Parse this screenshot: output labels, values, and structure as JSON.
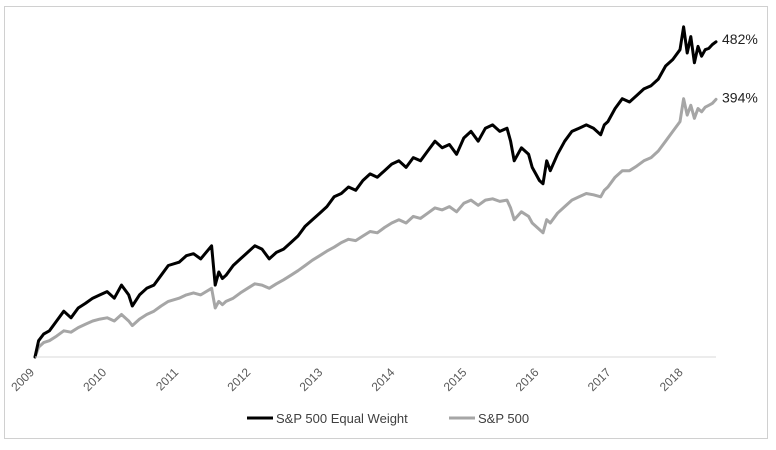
{
  "chart_data": {
    "type": "line",
    "title": "",
    "xlabel": "",
    "ylabel": "",
    "x_ticks": [
      "2009",
      "2010",
      "2011",
      "2012",
      "2013",
      "2014",
      "2015",
      "2016",
      "2017",
      "2018"
    ],
    "xlim": [
      2009.0,
      2018.45
    ],
    "ylim": [
      0,
      520
    ],
    "grid": false,
    "legend": "bottom",
    "series": [
      {
        "name": "S&P 500 Equal Weight",
        "color": "#000000",
        "end_label": "482%",
        "x": [
          2009.0,
          2009.05,
          2009.12,
          2009.2,
          2009.3,
          2009.4,
          2009.5,
          2009.6,
          2009.7,
          2009.8,
          2009.9,
          2010.0,
          2010.1,
          2010.2,
          2010.3,
          2010.35,
          2010.45,
          2010.55,
          2010.65,
          2010.75,
          2010.85,
          2011.0,
          2011.1,
          2011.2,
          2011.3,
          2011.45,
          2011.5,
          2011.55,
          2011.6,
          2011.65,
          2011.75,
          2011.85,
          2011.95,
          2012.05,
          2012.15,
          2012.25,
          2012.35,
          2012.45,
          2012.55,
          2012.65,
          2012.75,
          2012.85,
          2012.95,
          2013.05,
          2013.15,
          2013.25,
          2013.35,
          2013.45,
          2013.55,
          2013.65,
          2013.75,
          2013.85,
          2013.95,
          2014.05,
          2014.15,
          2014.25,
          2014.35,
          2014.45,
          2014.55,
          2014.65,
          2014.75,
          2014.85,
          2014.95,
          2015.05,
          2015.15,
          2015.25,
          2015.35,
          2015.45,
          2015.55,
          2015.6,
          2015.65,
          2015.75,
          2015.85,
          2015.9,
          2015.95,
          2016.0,
          2016.05,
          2016.1,
          2016.15,
          2016.25,
          2016.35,
          2016.45,
          2016.55,
          2016.65,
          2016.75,
          2016.85,
          2016.9,
          2016.95,
          2017.05,
          2017.15,
          2017.25,
          2017.35,
          2017.45,
          2017.55,
          2017.65,
          2017.75,
          2017.85,
          2017.95,
          2018.0,
          2018.05,
          2018.1,
          2018.15,
          2018.2,
          2018.25,
          2018.3,
          2018.35,
          2018.4,
          2018.45
        ],
        "y": [
          0,
          25,
          35,
          40,
          55,
          70,
          60,
          75,
          82,
          90,
          95,
          100,
          90,
          110,
          95,
          78,
          95,
          105,
          110,
          125,
          140,
          145,
          155,
          158,
          150,
          170,
          110,
          130,
          120,
          125,
          140,
          150,
          160,
          170,
          165,
          150,
          160,
          165,
          175,
          185,
          200,
          210,
          220,
          230,
          245,
          250,
          260,
          255,
          270,
          280,
          275,
          285,
          295,
          300,
          290,
          305,
          300,
          315,
          330,
          320,
          325,
          310,
          335,
          345,
          330,
          350,
          355,
          345,
          350,
          330,
          300,
          320,
          310,
          290,
          280,
          270,
          265,
          300,
          285,
          310,
          330,
          345,
          350,
          355,
          350,
          340,
          355,
          360,
          380,
          395,
          390,
          400,
          410,
          415,
          425,
          445,
          455,
          470,
          505,
          465,
          490,
          450,
          475,
          460,
          470,
          472,
          478,
          482
        ]
      },
      {
        "name": "S&P 500",
        "color": "#a6a6a6",
        "end_label": "394%",
        "x": [
          2009.0,
          2009.05,
          2009.12,
          2009.2,
          2009.3,
          2009.4,
          2009.5,
          2009.6,
          2009.7,
          2009.8,
          2009.9,
          2010.0,
          2010.1,
          2010.2,
          2010.3,
          2010.35,
          2010.45,
          2010.55,
          2010.65,
          2010.75,
          2010.85,
          2011.0,
          2011.1,
          2011.2,
          2011.3,
          2011.45,
          2011.5,
          2011.55,
          2011.6,
          2011.65,
          2011.75,
          2011.85,
          2011.95,
          2012.05,
          2012.15,
          2012.25,
          2012.35,
          2012.45,
          2012.55,
          2012.65,
          2012.75,
          2012.85,
          2012.95,
          2013.05,
          2013.15,
          2013.25,
          2013.35,
          2013.45,
          2013.55,
          2013.65,
          2013.75,
          2013.85,
          2013.95,
          2014.05,
          2014.15,
          2014.25,
          2014.35,
          2014.45,
          2014.55,
          2014.65,
          2014.75,
          2014.85,
          2014.95,
          2015.05,
          2015.15,
          2015.25,
          2015.35,
          2015.45,
          2015.55,
          2015.6,
          2015.65,
          2015.75,
          2015.85,
          2015.9,
          2015.95,
          2016.0,
          2016.05,
          2016.1,
          2016.15,
          2016.25,
          2016.35,
          2016.45,
          2016.55,
          2016.65,
          2016.75,
          2016.85,
          2016.9,
          2016.95,
          2017.05,
          2017.15,
          2017.25,
          2017.35,
          2017.45,
          2017.55,
          2017.65,
          2017.75,
          2017.85,
          2017.95,
          2018.0,
          2018.05,
          2018.1,
          2018.15,
          2018.2,
          2018.25,
          2018.3,
          2018.35,
          2018.4,
          2018.45
        ],
        "y": [
          0,
          15,
          22,
          25,
          32,
          40,
          38,
          45,
          50,
          55,
          58,
          60,
          55,
          65,
          55,
          48,
          58,
          65,
          70,
          78,
          85,
          90,
          95,
          98,
          95,
          105,
          75,
          85,
          80,
          85,
          90,
          98,
          105,
          112,
          110,
          105,
          112,
          118,
          125,
          132,
          140,
          148,
          155,
          162,
          168,
          175,
          180,
          178,
          185,
          192,
          190,
          198,
          205,
          210,
          205,
          215,
          212,
          220,
          228,
          225,
          230,
          222,
          235,
          240,
          232,
          240,
          242,
          238,
          240,
          228,
          210,
          222,
          215,
          205,
          200,
          195,
          190,
          210,
          205,
          220,
          230,
          240,
          245,
          250,
          248,
          245,
          255,
          260,
          275,
          285,
          285,
          292,
          300,
          305,
          315,
          330,
          345,
          360,
          395,
          370,
          385,
          365,
          380,
          375,
          382,
          385,
          388,
          394
        ]
      }
    ]
  }
}
